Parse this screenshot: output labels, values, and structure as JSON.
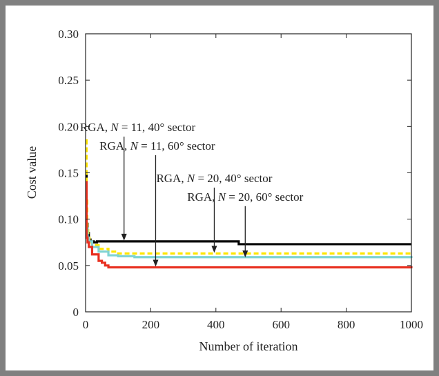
{
  "chart_data": {
    "type": "line",
    "title": "",
    "xlabel": "Number of iteration",
    "ylabel": "Cost value",
    "xlim": [
      0,
      1000
    ],
    "ylim": [
      0,
      0.3
    ],
    "x_ticks": [
      "0",
      "200",
      "400",
      "600",
      "800",
      "1000"
    ],
    "y_ticks": [
      "0",
      "0.05",
      "0.10",
      "0.15",
      "0.20",
      "0.25",
      "0.30"
    ],
    "grid": false,
    "series": [
      {
        "name": "RGA, N = 11, 40° sector",
        "color": "#000000",
        "dash": "",
        "x": [
          1,
          3,
          6,
          10,
          15,
          25,
          35,
          460,
          470,
          1000
        ],
        "y": [
          0.15,
          0.095,
          0.085,
          0.078,
          0.076,
          0.075,
          0.076,
          0.076,
          0.073,
          0.073
        ]
      },
      {
        "name": "RGA, N = 11, 60° sector",
        "color": "#ffe600",
        "dash": "7,4",
        "x": [
          1,
          3,
          5,
          8,
          12,
          20,
          40,
          70,
          100,
          1000
        ],
        "y": [
          0.185,
          0.12,
          0.09,
          0.08,
          0.075,
          0.072,
          0.068,
          0.065,
          0.063,
          0.063
        ]
      },
      {
        "name": "RGA, N = 20, 40° sector",
        "color": "#7fd3d3",
        "dash": "",
        "x": [
          1,
          3,
          6,
          10,
          20,
          40,
          70,
          100,
          150,
          1000
        ],
        "y": [
          0.135,
          0.09,
          0.08,
          0.076,
          0.07,
          0.065,
          0.061,
          0.06,
          0.059,
          0.058
        ]
      },
      {
        "name": "RGA, N = 20, 60° sector",
        "color": "#e83020",
        "dash": "",
        "x": [
          1,
          3,
          6,
          10,
          20,
          40,
          50,
          60,
          70,
          1000
        ],
        "y": [
          0.14,
          0.08,
          0.075,
          0.07,
          0.062,
          0.055,
          0.053,
          0.05,
          0.048,
          0.047
        ]
      }
    ],
    "annotations": [
      {
        "prefix": "RGA, ",
        "var": "N",
        "suffix": " = 11, 40° sector",
        "text_x": 160,
        "text_y": 0.195,
        "arrow_to_x": 118,
        "arrow_to_y": 0.076
      },
      {
        "prefix": "RGA, ",
        "var": "N",
        "suffix": " = 11, 60° sector",
        "text_x": 220,
        "text_y": 0.175,
        "arrow_to_x": 215,
        "arrow_to_y": 0.048
      },
      {
        "prefix": "RGA, ",
        "var": "N",
        "suffix": " = 20, 40° sector",
        "text_x": 395,
        "text_y": 0.14,
        "arrow_to_x": 395,
        "arrow_to_y": 0.063
      },
      {
        "prefix": "RGA, ",
        "var": "N",
        "suffix": " = 20, 60° sector",
        "text_x": 490,
        "text_y": 0.12,
        "arrow_to_x": 490,
        "arrow_to_y": 0.058
      }
    ]
  }
}
